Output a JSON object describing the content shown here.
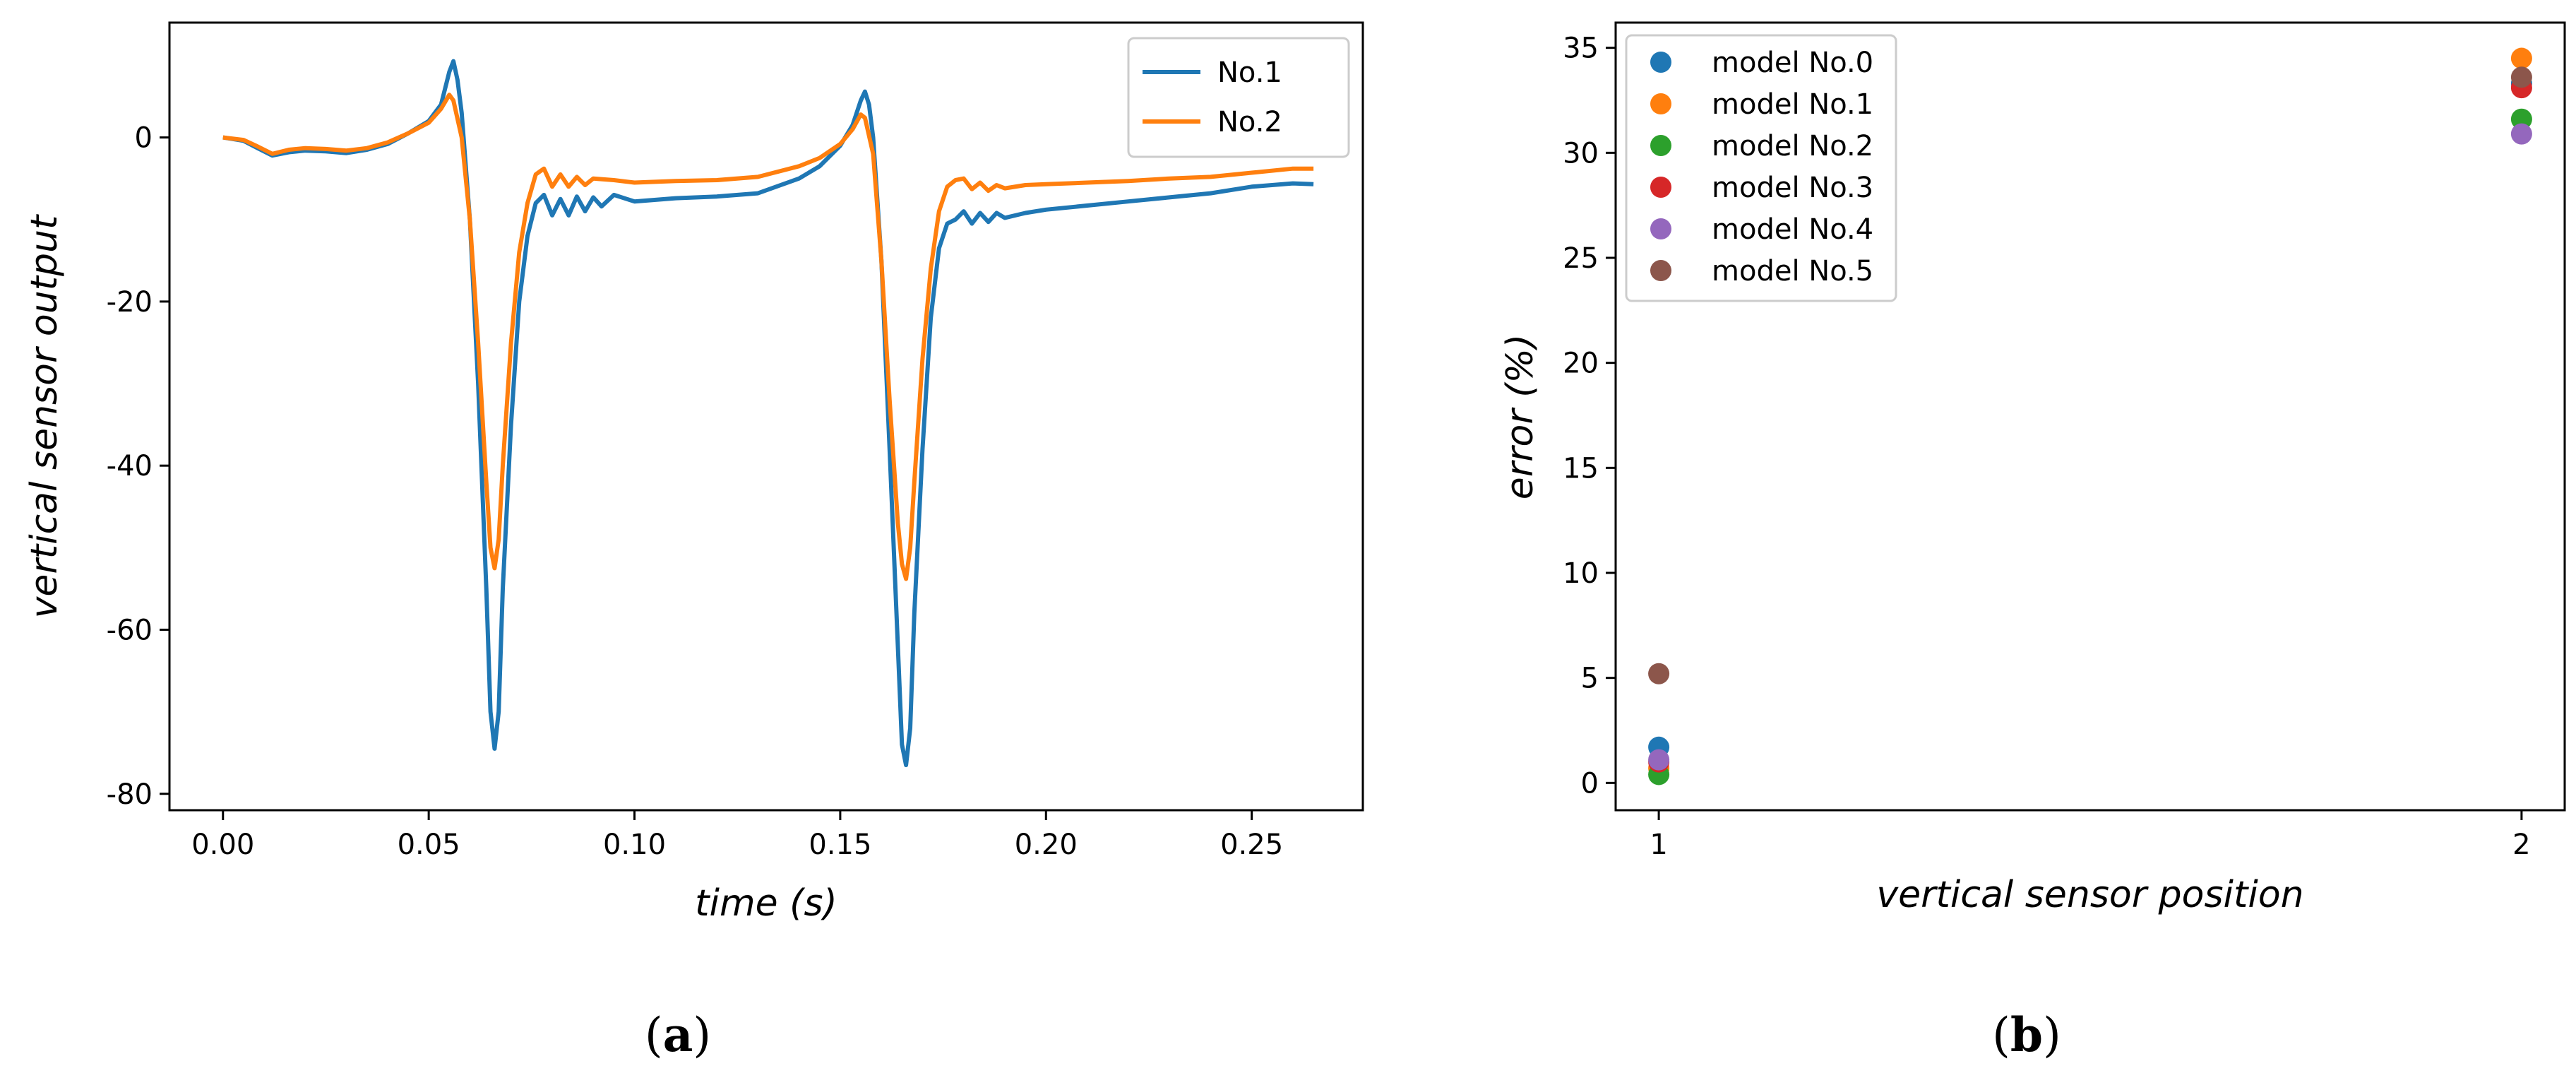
{
  "chart_data": [
    {
      "type": "line",
      "panel_label": {
        "open": "(",
        "letter": "a",
        "close": ")"
      },
      "title": "",
      "xlabel": "time (s)",
      "ylabel": "vertical sensor output",
      "xlim": [
        -0.013,
        0.277
      ],
      "ylim": [
        -82,
        14
      ],
      "xticks": [
        0.0,
        0.05,
        0.1,
        0.15,
        0.2,
        0.25
      ],
      "xtick_labels": [
        "0.00",
        "0.05",
        "0.10",
        "0.15",
        "0.20",
        "0.25"
      ],
      "yticks": [
        0,
        -20,
        -40,
        -60,
        -80
      ],
      "ytick_labels": [
        "0",
        "-20",
        "-40",
        "-60",
        "-80"
      ],
      "legend": {
        "placement": "top-right",
        "entries": [
          "No.1",
          "No.2"
        ]
      },
      "series": [
        {
          "name": "No.1",
          "color": "#1f77b4",
          "points": [
            [
              0.0,
              0
            ],
            [
              0.005,
              -0.4
            ],
            [
              0.008,
              -1.2
            ],
            [
              0.012,
              -2.2
            ],
            [
              0.016,
              -1.8
            ],
            [
              0.02,
              -1.6
            ],
            [
              0.025,
              -1.7
            ],
            [
              0.03,
              -1.9
            ],
            [
              0.035,
              -1.5
            ],
            [
              0.04,
              -0.8
            ],
            [
              0.045,
              0.5
            ],
            [
              0.05,
              2
            ],
            [
              0.053,
              4
            ],
            [
              0.055,
              8
            ],
            [
              0.056,
              9.3
            ],
            [
              0.057,
              7
            ],
            [
              0.058,
              3
            ],
            [
              0.06,
              -10
            ],
            [
              0.062,
              -30
            ],
            [
              0.064,
              -55
            ],
            [
              0.065,
              -70
            ],
            [
              0.066,
              -74.5
            ],
            [
              0.067,
              -70
            ],
            [
              0.068,
              -55
            ],
            [
              0.07,
              -35
            ],
            [
              0.072,
              -20
            ],
            [
              0.074,
              -12
            ],
            [
              0.076,
              -8
            ],
            [
              0.078,
              -7
            ],
            [
              0.08,
              -9.5
            ],
            [
              0.082,
              -7.5
            ],
            [
              0.084,
              -9.5
            ],
            [
              0.086,
              -7.2
            ],
            [
              0.088,
              -9
            ],
            [
              0.09,
              -7.3
            ],
            [
              0.092,
              -8.4
            ],
            [
              0.095,
              -7
            ],
            [
              0.1,
              -7.8
            ],
            [
              0.11,
              -7.4
            ],
            [
              0.12,
              -7.2
            ],
            [
              0.13,
              -6.8
            ],
            [
              0.14,
              -5
            ],
            [
              0.145,
              -3.5
            ],
            [
              0.15,
              -1
            ],
            [
              0.153,
              1.5
            ],
            [
              0.155,
              4.5
            ],
            [
              0.156,
              5.6
            ],
            [
              0.157,
              4
            ],
            [
              0.158,
              0
            ],
            [
              0.16,
              -15
            ],
            [
              0.162,
              -38
            ],
            [
              0.164,
              -62
            ],
            [
              0.165,
              -74
            ],
            [
              0.166,
              -76.5
            ],
            [
              0.167,
              -72
            ],
            [
              0.168,
              -58
            ],
            [
              0.17,
              -38
            ],
            [
              0.172,
              -22
            ],
            [
              0.174,
              -13.5
            ],
            [
              0.176,
              -10.5
            ],
            [
              0.178,
              -10
            ],
            [
              0.18,
              -9
            ],
            [
              0.182,
              -10.5
            ],
            [
              0.184,
              -9.2
            ],
            [
              0.186,
              -10.3
            ],
            [
              0.188,
              -9.2
            ],
            [
              0.19,
              -9.8
            ],
            [
              0.195,
              -9.2
            ],
            [
              0.2,
              -8.8
            ],
            [
              0.21,
              -8.3
            ],
            [
              0.22,
              -7.8
            ],
            [
              0.23,
              -7.3
            ],
            [
              0.24,
              -6.8
            ],
            [
              0.25,
              -6
            ],
            [
              0.26,
              -5.6
            ],
            [
              0.265,
              -5.7
            ]
          ]
        },
        {
          "name": "No.2",
          "color": "#ff7f0e",
          "points": [
            [
              0.0,
              0
            ],
            [
              0.005,
              -0.3
            ],
            [
              0.008,
              -1
            ],
            [
              0.012,
              -2
            ],
            [
              0.016,
              -1.5
            ],
            [
              0.02,
              -1.3
            ],
            [
              0.025,
              -1.4
            ],
            [
              0.03,
              -1.6
            ],
            [
              0.035,
              -1.3
            ],
            [
              0.04,
              -0.6
            ],
            [
              0.045,
              0.5
            ],
            [
              0.05,
              1.8
            ],
            [
              0.053,
              3.5
            ],
            [
              0.055,
              5.2
            ],
            [
              0.056,
              4.5
            ],
            [
              0.058,
              0
            ],
            [
              0.06,
              -10
            ],
            [
              0.062,
              -25
            ],
            [
              0.064,
              -42
            ],
            [
              0.065,
              -50
            ],
            [
              0.066,
              -52.5
            ],
            [
              0.067,
              -49
            ],
            [
              0.068,
              -40
            ],
            [
              0.07,
              -25
            ],
            [
              0.072,
              -14
            ],
            [
              0.074,
              -8
            ],
            [
              0.076,
              -4.5
            ],
            [
              0.078,
              -3.8
            ],
            [
              0.08,
              -6
            ],
            [
              0.082,
              -4.5
            ],
            [
              0.084,
              -6
            ],
            [
              0.086,
              -4.8
            ],
            [
              0.088,
              -5.8
            ],
            [
              0.09,
              -5
            ],
            [
              0.095,
              -5.2
            ],
            [
              0.1,
              -5.5
            ],
            [
              0.11,
              -5.3
            ],
            [
              0.12,
              -5.2
            ],
            [
              0.13,
              -4.8
            ],
            [
              0.14,
              -3.5
            ],
            [
              0.145,
              -2.5
            ],
            [
              0.15,
              -0.8
            ],
            [
              0.153,
              1
            ],
            [
              0.155,
              2.8
            ],
            [
              0.156,
              2.4
            ],
            [
              0.158,
              -2
            ],
            [
              0.16,
              -15
            ],
            [
              0.162,
              -32
            ],
            [
              0.164,
              -47
            ],
            [
              0.165,
              -52
            ],
            [
              0.166,
              -53.8
            ],
            [
              0.167,
              -50
            ],
            [
              0.168,
              -42
            ],
            [
              0.17,
              -27
            ],
            [
              0.172,
              -16
            ],
            [
              0.174,
              -9
            ],
            [
              0.176,
              -6
            ],
            [
              0.178,
              -5.2
            ],
            [
              0.18,
              -5
            ],
            [
              0.182,
              -6.3
            ],
            [
              0.184,
              -5.5
            ],
            [
              0.186,
              -6.5
            ],
            [
              0.188,
              -5.8
            ],
            [
              0.19,
              -6.2
            ],
            [
              0.195,
              -5.8
            ],
            [
              0.2,
              -5.7
            ],
            [
              0.21,
              -5.5
            ],
            [
              0.22,
              -5.3
            ],
            [
              0.23,
              -5
            ],
            [
              0.24,
              -4.8
            ],
            [
              0.25,
              -4.3
            ],
            [
              0.26,
              -3.8
            ],
            [
              0.265,
              -3.8
            ]
          ]
        }
      ]
    },
    {
      "type": "scatter",
      "panel_label": {
        "open": "(",
        "letter": "b",
        "close": ")"
      },
      "title": "",
      "xlabel": "vertical sensor position",
      "ylabel": "error (%)",
      "xlim": [
        0.95,
        2.05
      ],
      "ylim": [
        -1.3,
        36.2
      ],
      "xticks": [
        1,
        2
      ],
      "xtick_labels": [
        "1",
        "2"
      ],
      "yticks": [
        0,
        5,
        10,
        15,
        20,
        25,
        30,
        35
      ],
      "ytick_labels": [
        "0",
        "5",
        "10",
        "15",
        "20",
        "25",
        "30",
        "35"
      ],
      "legend": {
        "placement": "top-left",
        "entries": [
          "model No.0",
          "model No.1",
          "model No.2",
          "model No.3",
          "model No.4",
          "model No.5"
        ]
      },
      "series": [
        {
          "name": "model No.0",
          "color": "#1f77b4",
          "x": [
            1,
            2
          ],
          "y": [
            1.7,
            33.3
          ]
        },
        {
          "name": "model No.1",
          "color": "#ff7f0e",
          "x": [
            1,
            2
          ],
          "y": [
            0.7,
            34.5
          ]
        },
        {
          "name": "model No.2",
          "color": "#2ca02c",
          "x": [
            1,
            2
          ],
          "y": [
            0.4,
            31.6
          ]
        },
        {
          "name": "model No.3",
          "color": "#d62728",
          "x": [
            1,
            2
          ],
          "y": [
            1.0,
            33.1
          ]
        },
        {
          "name": "model No.4",
          "color": "#9467bd",
          "x": [
            1,
            2
          ],
          "y": [
            1.1,
            30.9
          ]
        },
        {
          "name": "model No.5",
          "color": "#8c564b",
          "x": [
            1,
            2
          ],
          "y": [
            5.2,
            33.6
          ]
        }
      ]
    }
  ]
}
